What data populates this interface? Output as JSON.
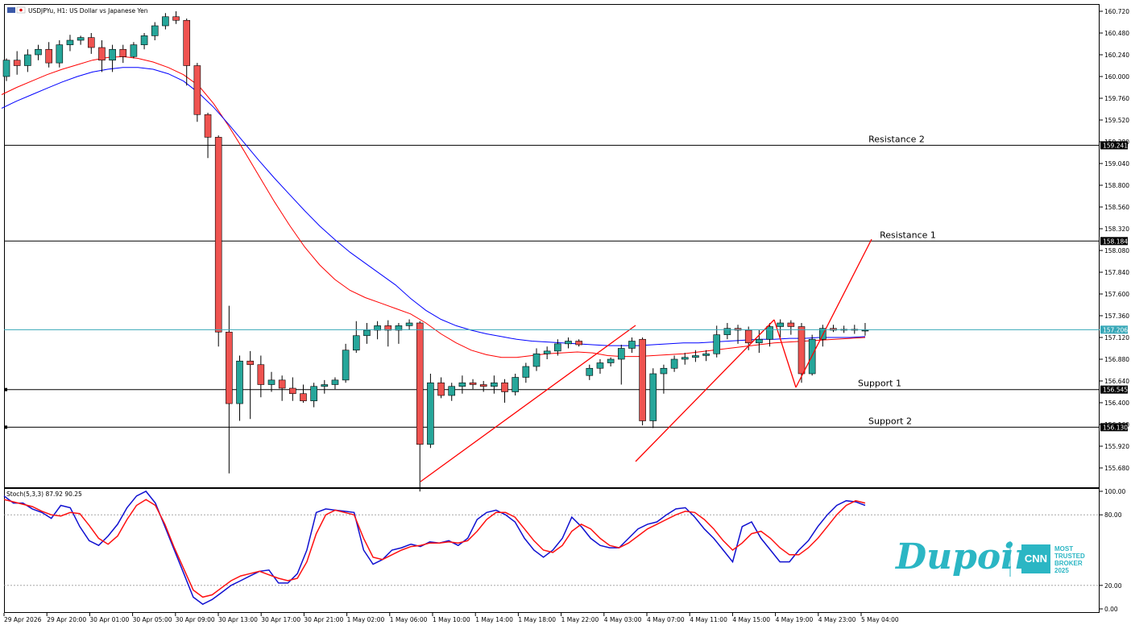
{
  "header": {
    "symbol_title": "USDJPYu, H1:  US Dollar vs Japanese Yen"
  },
  "chart_data": {
    "type": "candlestick",
    "symbol": "USDJPYu",
    "timeframe": "H1",
    "price_axis": {
      "ticks": [
        "160.720",
        "160.480",
        "160.240",
        "160.000",
        "159.760",
        "159.520",
        "159.280",
        "159.040",
        "158.800",
        "158.560",
        "158.320",
        "158.080",
        "157.840",
        "157.600",
        "157.360",
        "157.120",
        "156.880",
        "156.640",
        "156.400",
        "156.160",
        "155.920",
        "155.680"
      ],
      "range": [
        155.48,
        160.76
      ]
    },
    "time_axis": {
      "labels": [
        "29 Apr 2026",
        "29 Apr 20:00",
        "30 Apr 01:00",
        "30 Apr 05:00",
        "30 Apr 09:00",
        "30 Apr 13:00",
        "30 Apr 17:00",
        "30 Apr 21:00",
        "1 May 02:00",
        "1 May 06:00",
        "1 May 10:00",
        "1 May 14:00",
        "1 May 18:00",
        "1 May 22:00",
        "4 May 03:00",
        "4 May 07:00",
        "4 May 11:00",
        "4 May 15:00",
        "4 May 19:00",
        "4 May 23:00",
        "5 May 04:00"
      ]
    },
    "levels": [
      {
        "name": "Resistance 2",
        "price": 159.241,
        "tag": "159.241"
      },
      {
        "name": "Resistance 1",
        "price": 158.184,
        "tag": "158.184"
      },
      {
        "name": "Support 1",
        "price": 156.545,
        "tag": "156.545"
      },
      {
        "name": "Support 2",
        "price": 156.13,
        "tag": "156.130"
      }
    ],
    "current_price": {
      "value": 157.206,
      "tag": "157.206"
    },
    "candles": [
      [
        160.0,
        160.2,
        159.95,
        160.18
      ],
      [
        160.18,
        160.28,
        160.02,
        160.12
      ],
      [
        160.12,
        160.3,
        160.05,
        160.24
      ],
      [
        160.24,
        160.35,
        160.18,
        160.3
      ],
      [
        160.3,
        160.38,
        160.1,
        160.15
      ],
      [
        160.15,
        160.4,
        160.1,
        160.35
      ],
      [
        160.35,
        160.46,
        160.28,
        160.4
      ],
      [
        160.4,
        160.45,
        160.35,
        160.43
      ],
      [
        160.43,
        160.48,
        160.25,
        160.32
      ],
      [
        160.32,
        160.4,
        160.05,
        160.18
      ],
      [
        160.18,
        160.35,
        160.05,
        160.3
      ],
      [
        160.3,
        160.35,
        160.15,
        160.22
      ],
      [
        160.22,
        160.38,
        160.2,
        160.35
      ],
      [
        160.35,
        160.48,
        160.3,
        160.45
      ],
      [
        160.45,
        160.6,
        160.4,
        160.56
      ],
      [
        160.56,
        160.7,
        160.52,
        160.66
      ],
      [
        160.66,
        160.72,
        160.58,
        160.62
      ],
      [
        160.62,
        160.64,
        159.9,
        160.12
      ],
      [
        160.12,
        160.15,
        159.5,
        159.58
      ],
      [
        159.58,
        159.6,
        159.1,
        159.33
      ],
      [
        159.33,
        159.35,
        157.02,
        157.18
      ],
      [
        157.18,
        157.47,
        155.62,
        156.39
      ],
      [
        156.39,
        156.92,
        156.2,
        156.86
      ],
      [
        156.86,
        156.97,
        156.22,
        156.82
      ],
      [
        156.82,
        156.92,
        156.46,
        156.6
      ],
      [
        156.6,
        156.74,
        156.52,
        156.65
      ],
      [
        156.65,
        156.7,
        156.42,
        156.56
      ],
      [
        156.56,
        156.68,
        156.42,
        156.5
      ],
      [
        156.5,
        156.6,
        156.4,
        156.42
      ],
      [
        156.42,
        156.62,
        156.35,
        156.58
      ],
      [
        156.58,
        156.65,
        156.5,
        156.6
      ],
      [
        156.6,
        156.68,
        156.55,
        156.65
      ],
      [
        156.65,
        157.05,
        156.62,
        156.98
      ],
      [
        156.98,
        157.3,
        156.95,
        157.14
      ],
      [
        157.14,
        157.28,
        157.05,
        157.2
      ],
      [
        157.2,
        157.3,
        157.1,
        157.25
      ],
      [
        157.25,
        157.31,
        157.02,
        157.2
      ],
      [
        157.2,
        157.28,
        157.05,
        157.25
      ],
      [
        157.25,
        157.32,
        157.2,
        157.28
      ],
      [
        157.28,
        157.3,
        155.42,
        155.94
      ],
      [
        155.94,
        156.72,
        155.9,
        156.62
      ],
      [
        156.62,
        156.68,
        156.45,
        156.48
      ],
      [
        156.48,
        156.62,
        156.42,
        156.58
      ],
      [
        156.58,
        156.7,
        156.5,
        156.62
      ],
      [
        156.62,
        156.66,
        156.55,
        156.6
      ],
      [
        156.6,
        156.64,
        156.52,
        156.58
      ],
      [
        156.58,
        156.7,
        156.5,
        156.62
      ],
      [
        156.62,
        156.66,
        156.4,
        156.52
      ],
      [
        156.52,
        156.72,
        156.48,
        156.68
      ],
      [
        156.68,
        156.84,
        156.62,
        156.8
      ],
      [
        156.8,
        157.0,
        156.75,
        156.94
      ],
      [
        156.94,
        157.02,
        156.88,
        156.97
      ],
      [
        156.97,
        157.1,
        156.92,
        157.05
      ],
      [
        157.05,
        157.12,
        157.0,
        157.08
      ],
      [
        157.08,
        157.1,
        157.02,
        157.04
      ],
      [
        156.7,
        156.82,
        156.65,
        156.78
      ],
      [
        156.78,
        156.88,
        156.72,
        156.84
      ],
      [
        156.84,
        156.9,
        156.8,
        156.88
      ],
      [
        156.88,
        157.04,
        156.6,
        157.0
      ],
      [
        157.0,
        157.12,
        156.95,
        157.08
      ],
      [
        157.1,
        157.12,
        156.15,
        156.2
      ],
      [
        156.2,
        156.78,
        156.12,
        156.72
      ],
      [
        156.72,
        156.82,
        156.5,
        156.78
      ],
      [
        156.78,
        156.92,
        156.74,
        156.88
      ],
      [
        156.88,
        156.95,
        156.82,
        156.9
      ],
      [
        156.9,
        156.98,
        156.85,
        156.92
      ],
      [
        156.92,
        156.98,
        156.86,
        156.94
      ],
      [
        156.94,
        157.25,
        156.9,
        157.15
      ],
      [
        157.15,
        157.28,
        157.1,
        157.22
      ],
      [
        157.22,
        157.26,
        157.05,
        157.2
      ],
      [
        157.2,
        157.24,
        156.98,
        157.06
      ],
      [
        157.06,
        157.2,
        156.95,
        157.1
      ],
      [
        157.1,
        157.28,
        157.02,
        157.24
      ],
      [
        157.24,
        157.32,
        157.12,
        157.28
      ],
      [
        157.28,
        157.31,
        157.15,
        157.24
      ],
      [
        157.24,
        157.28,
        156.62,
        156.72
      ],
      [
        156.72,
        157.15,
        156.7,
        157.1
      ],
      [
        157.1,
        157.26,
        157.02,
        157.22
      ],
      [
        157.22,
        157.26,
        157.18,
        157.2
      ],
      [
        157.2,
        157.25,
        157.17,
        157.21
      ],
      [
        157.21,
        157.26,
        157.16,
        157.2
      ],
      [
        157.2,
        157.28,
        157.14,
        157.2
      ]
    ],
    "moving_averages": [
      {
        "color": "#ff0000",
        "values": [
          159.8,
          159.88,
          159.95,
          160.02,
          160.08,
          160.13,
          160.18,
          160.21,
          160.22,
          160.2,
          160.16,
          160.1,
          160.02,
          159.9,
          159.7,
          159.45,
          159.18,
          158.9,
          158.62,
          158.36,
          158.12,
          157.92,
          157.76,
          157.64,
          157.56,
          157.5,
          157.44,
          157.38,
          157.28,
          157.16,
          157.06,
          156.98,
          156.93,
          156.9,
          156.9,
          156.92,
          156.94,
          156.95,
          156.96,
          156.95,
          156.92,
          156.91,
          156.91,
          156.92,
          156.93,
          156.94,
          156.96,
          156.98,
          157.0,
          157.02,
          157.04,
          157.06,
          157.07,
          157.08,
          157.09,
          157.1,
          157.11,
          157.12
        ]
      },
      {
        "color": "#0000ff",
        "values": [
          159.65,
          159.73,
          159.8,
          159.87,
          159.94,
          160.0,
          160.05,
          160.08,
          160.1,
          160.1,
          160.08,
          160.03,
          159.95,
          159.82,
          159.66,
          159.47,
          159.27,
          159.07,
          158.88,
          158.7,
          158.52,
          158.35,
          158.2,
          158.06,
          157.94,
          157.82,
          157.7,
          157.55,
          157.42,
          157.32,
          157.25,
          157.2,
          157.16,
          157.13,
          157.1,
          157.08,
          157.07,
          157.06,
          157.05,
          157.04,
          157.03,
          157.03,
          157.03,
          157.04,
          157.05,
          157.06,
          157.06,
          157.07,
          157.08,
          157.09,
          157.1,
          157.1,
          157.11,
          157.11,
          157.12,
          157.12,
          157.12,
          157.13
        ]
      }
    ],
    "trendlines": [
      {
        "points": [
          [
            522,
            598
          ],
          [
            789,
            404
          ]
        ]
      },
      {
        "points": [
          [
            789,
            573
          ],
          [
            961,
            397
          ]
        ]
      },
      {
        "points": [
          [
            961,
            397
          ],
          [
            988,
            481
          ]
        ]
      },
      {
        "points": [
          [
            988,
            481
          ],
          [
            1082,
            297
          ]
        ]
      }
    ],
    "stochastic": {
      "label": "Stoch(5,3,3) 87.92 90.25",
      "ticks": [
        "100.00",
        "80.00",
        "20.00",
        "0.00"
      ],
      "main": [
        96,
        90,
        90,
        85,
        82,
        77,
        88,
        86,
        70,
        58,
        54,
        62,
        72,
        86,
        96,
        100,
        90,
        70,
        50,
        30,
        10,
        4,
        8,
        14,
        20,
        24,
        28,
        32,
        33,
        22,
        22,
        30,
        50,
        82,
        85,
        84,
        83,
        82,
        50,
        38,
        42,
        50,
        52,
        55,
        53,
        57,
        56,
        58,
        54,
        60,
        76,
        82,
        84,
        80,
        74,
        60,
        50,
        44,
        50,
        60,
        78,
        70,
        60,
        54,
        52,
        52,
        60,
        68,
        72,
        74,
        80,
        85,
        86,
        78,
        68,
        60,
        50,
        40,
        70,
        74,
        60,
        50,
        40,
        40,
        50,
        58,
        70,
        80,
        88,
        92,
        91,
        88
      ],
      "signal": [
        93,
        91,
        89,
        87,
        83,
        80,
        79,
        82,
        81,
        71,
        60,
        55,
        62,
        76,
        88,
        93,
        88,
        72,
        52,
        34,
        16,
        10,
        12,
        18,
        24,
        28,
        30,
        32,
        29,
        26,
        24,
        26,
        40,
        64,
        80,
        84,
        82,
        80,
        60,
        44,
        42,
        46,
        50,
        53,
        54,
        56,
        56,
        57,
        56,
        58,
        66,
        76,
        82,
        82,
        78,
        68,
        58,
        50,
        48,
        54,
        66,
        72,
        68,
        60,
        54,
        52,
        56,
        62,
        68,
        72,
        76,
        80,
        83,
        82,
        76,
        68,
        58,
        50,
        56,
        64,
        66,
        60,
        52,
        46,
        46,
        52,
        60,
        70,
        80,
        88,
        92,
        90
      ]
    },
    "branding": {
      "logo_text": "Dupoin",
      "badge_cnn": "CNN",
      "badge_text": [
        "MOST",
        "TRUSTED",
        "BROKER",
        "2025"
      ]
    }
  }
}
